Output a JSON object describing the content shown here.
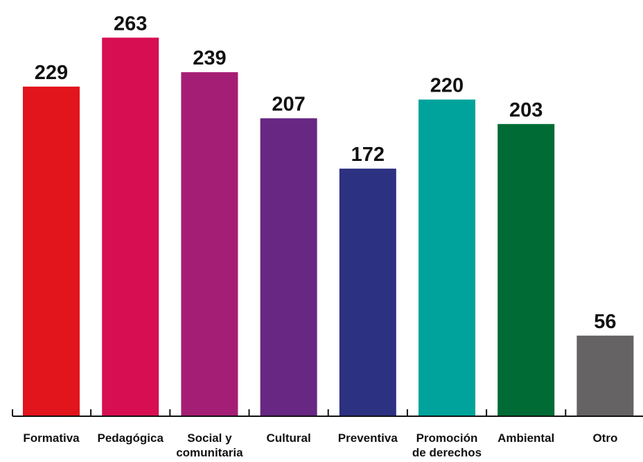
{
  "chart_data": {
    "type": "bar",
    "categories": [
      [
        "Formativa"
      ],
      [
        "Pedagógica"
      ],
      [
        "Social y",
        "comunitaria"
      ],
      [
        "Cultural"
      ],
      [
        "Preventiva"
      ],
      [
        "Promoción",
        "de derechos"
      ],
      [
        "Ambiental"
      ],
      [
        "Otro"
      ]
    ],
    "values": [
      229,
      263,
      239,
      207,
      172,
      220,
      203,
      56
    ],
    "colors": [
      "#e2141c",
      "#d70f52",
      "#a51e75",
      "#672783",
      "#2c3181",
      "#00a39b",
      "#006b35",
      "#656364"
    ],
    "title": "",
    "xlabel": "",
    "ylabel": "",
    "grid": false,
    "legend": "none"
  }
}
